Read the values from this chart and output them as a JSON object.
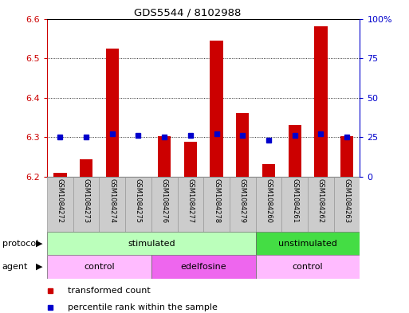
{
  "title": "GDS5544 / 8102988",
  "samples": [
    "GSM1084272",
    "GSM1084273",
    "GSM1084274",
    "GSM1084275",
    "GSM1084276",
    "GSM1084277",
    "GSM1084278",
    "GSM1084279",
    "GSM1084260",
    "GSM1084261",
    "GSM1084262",
    "GSM1084263"
  ],
  "transformed_count": [
    6.21,
    6.245,
    6.525,
    6.2,
    6.303,
    6.288,
    6.545,
    6.362,
    6.232,
    6.332,
    6.582,
    6.302
  ],
  "percentile_rank": [
    25,
    25,
    27,
    26,
    25,
    26,
    27,
    26,
    23,
    26,
    27,
    25
  ],
  "ylim_left": [
    6.2,
    6.6
  ],
  "ylim_right": [
    0,
    100
  ],
  "yticks_left": [
    6.2,
    6.3,
    6.4,
    6.5,
    6.6
  ],
  "yticks_right": [
    0,
    25,
    50,
    75,
    100
  ],
  "ytick_labels_right": [
    "0",
    "25",
    "50",
    "75",
    "100%"
  ],
  "bar_color": "#CC0000",
  "dot_color": "#0000CC",
  "bar_bottom": 6.2,
  "protocol_groups": [
    {
      "label": "stimulated",
      "start": 0,
      "end": 8,
      "color": "#bbffbb"
    },
    {
      "label": "unstimulated",
      "start": 8,
      "end": 12,
      "color": "#44dd44"
    }
  ],
  "agent_groups": [
    {
      "label": "control",
      "start": 0,
      "end": 4,
      "color": "#ffbbff"
    },
    {
      "label": "edelfosine",
      "start": 4,
      "end": 8,
      "color": "#ee66ee"
    },
    {
      "label": "control",
      "start": 8,
      "end": 12,
      "color": "#ffbbff"
    }
  ],
  "legend_items": [
    {
      "label": "transformed count",
      "color": "#CC0000"
    },
    {
      "label": "percentile rank within the sample",
      "color": "#0000CC"
    }
  ],
  "background_color": "#ffffff",
  "axis_color_left": "#CC0000",
  "axis_color_right": "#0000CC",
  "sample_box_color": "#cccccc",
  "sample_box_edge": "#999999"
}
